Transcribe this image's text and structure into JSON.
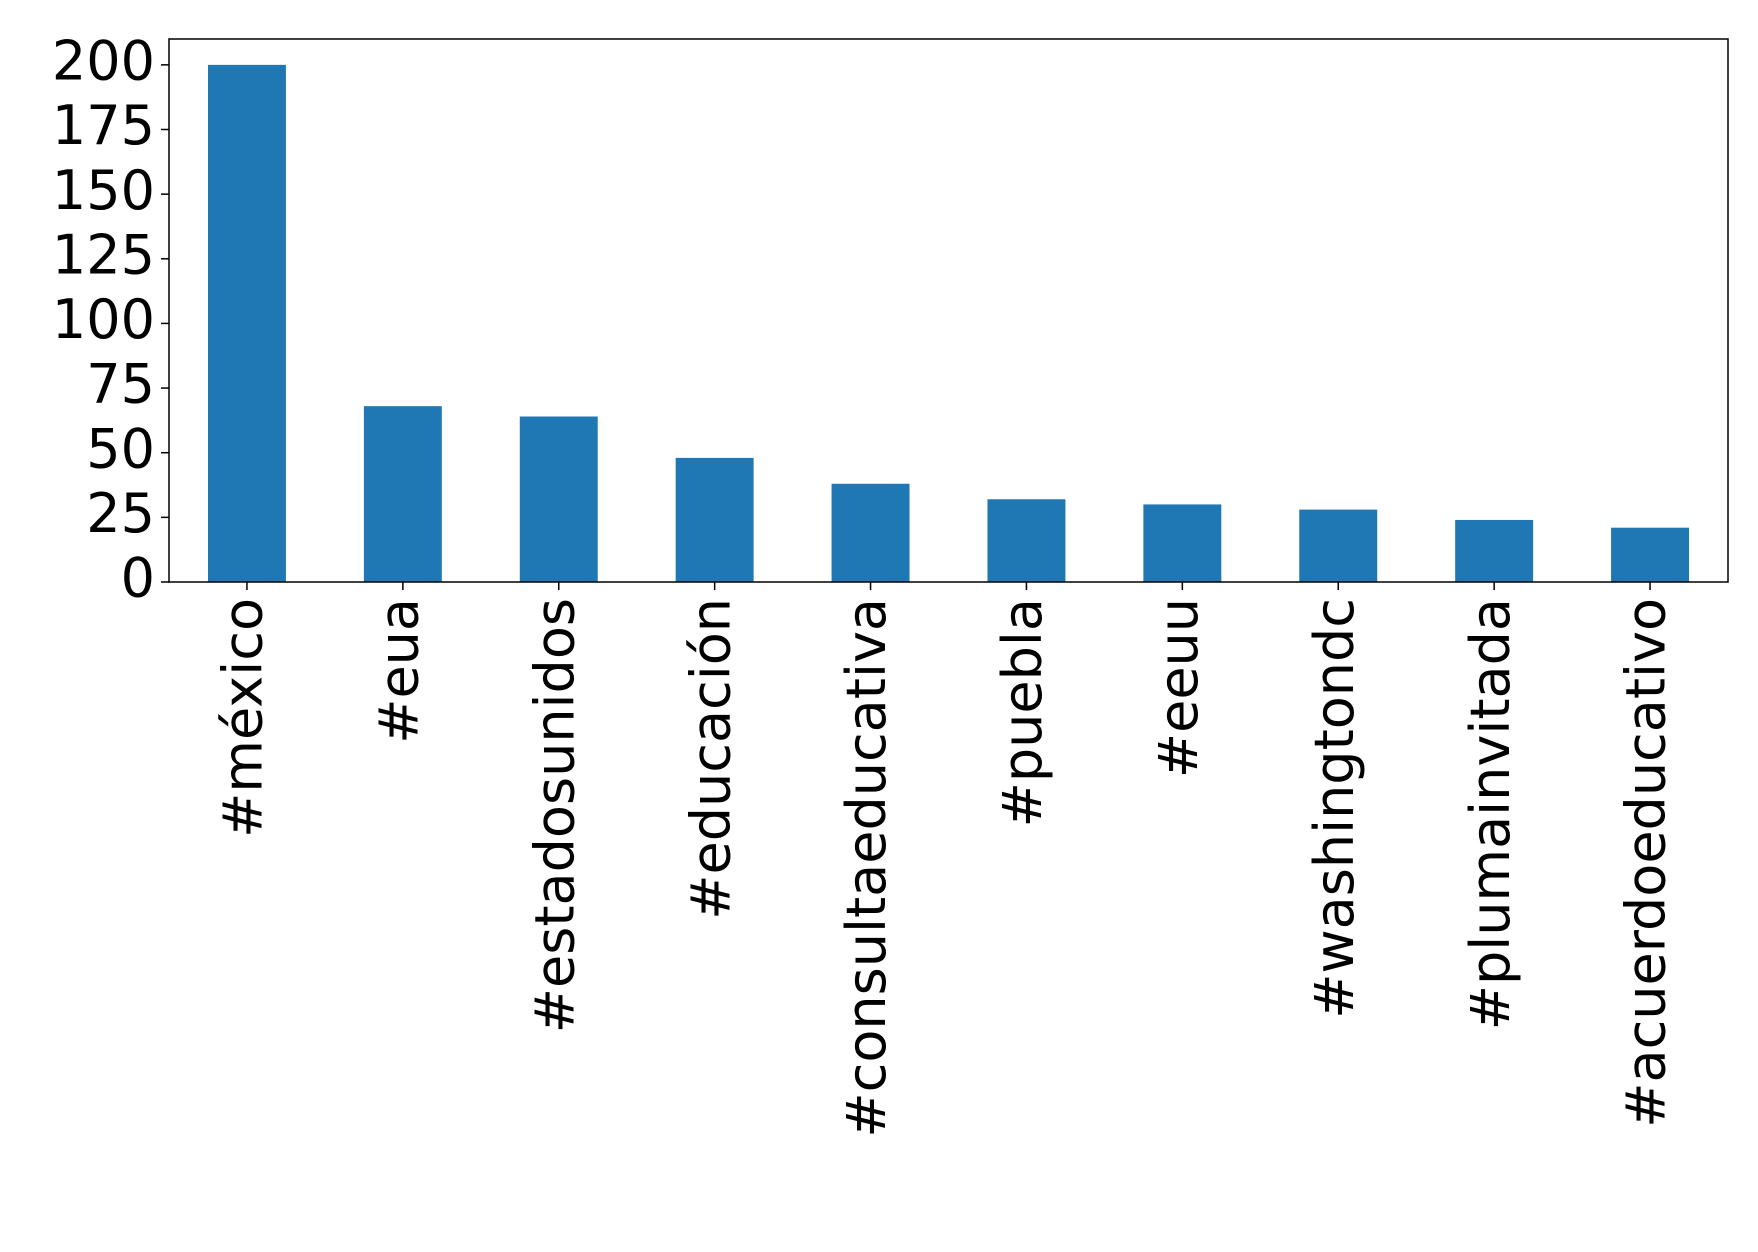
{
  "chart_data": {
    "type": "bar",
    "categories": [
      "#méxico",
      "#eua",
      "#estadosunidos",
      "#educación",
      "#consultaeducativa",
      "#puebla",
      "#eeuu",
      "#washingtondc",
      "#plumainvitada",
      "#acuerdoeducativo"
    ],
    "values": [
      200,
      68,
      64,
      48,
      38,
      32,
      30,
      28,
      24,
      21
    ],
    "color": "#1f77b4",
    "ylim": [
      0,
      210
    ],
    "yticks": [
      0,
      25,
      50,
      75,
      100,
      125,
      150,
      175,
      200
    ],
    "grid": false
  }
}
